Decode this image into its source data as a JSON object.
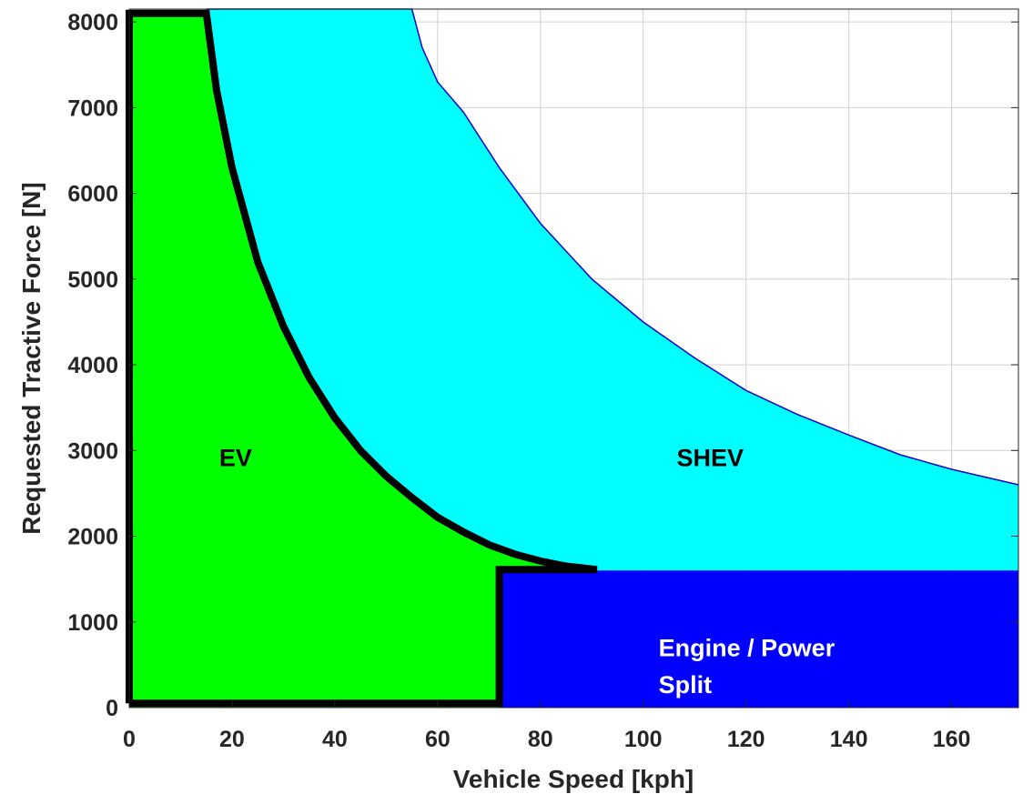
{
  "chart_data": {
    "type": "area",
    "xlabel": "Vehicle Speed [kph]",
    "ylabel": "Requested Tractive Force [N]",
    "xlim": [
      0,
      173
    ],
    "ylim": [
      0,
      8150
    ],
    "x_ticks": [
      0,
      20,
      40,
      60,
      80,
      100,
      120,
      140,
      160
    ],
    "y_ticks": [
      0,
      1000,
      2000,
      3000,
      4000,
      5000,
      6000,
      7000,
      8000
    ],
    "grid": true,
    "regions": [
      {
        "name": "SHEV",
        "color": "#00ffff",
        "edge_color": "#0000cc",
        "upper_boundary": [
          [
            15,
            8150
          ],
          [
            55,
            8150
          ],
          [
            57,
            7700
          ],
          [
            60,
            7300
          ],
          [
            65,
            6950
          ],
          [
            72,
            6300
          ],
          [
            80,
            5650
          ],
          [
            90,
            5000
          ],
          [
            100,
            4500
          ],
          [
            110,
            4080
          ],
          [
            120,
            3700
          ],
          [
            130,
            3420
          ],
          [
            140,
            3180
          ],
          [
            150,
            2950
          ],
          [
            160,
            2780
          ],
          [
            173,
            2600
          ]
        ],
        "lower_y": 1600
      },
      {
        "name": "EV",
        "color": "#00ff00",
        "polygon": [
          [
            0,
            0
          ],
          [
            0,
            8100
          ],
          [
            15,
            8100
          ],
          [
            17,
            7200
          ],
          [
            20,
            6300
          ],
          [
            25,
            5200
          ],
          [
            30,
            4450
          ],
          [
            35,
            3850
          ],
          [
            40,
            3380
          ],
          [
            45,
            3000
          ],
          [
            50,
            2700
          ],
          [
            55,
            2450
          ],
          [
            60,
            2220
          ],
          [
            65,
            2050
          ],
          [
            70,
            1900
          ],
          [
            75,
            1790
          ],
          [
            80,
            1710
          ],
          [
            85,
            1650
          ],
          [
            91,
            1610
          ],
          [
            72,
            1610
          ],
          [
            72,
            0
          ]
        ]
      },
      {
        "name": "Engine / Power Split",
        "color": "#0000ff",
        "polygon": [
          [
            72,
            0
          ],
          [
            72,
            1600
          ],
          [
            173,
            1600
          ],
          [
            173,
            0
          ]
        ]
      }
    ],
    "boundary_line": {
      "color": "#000000",
      "points": [
        [
          0,
          50
        ],
        [
          0,
          8100
        ],
        [
          15,
          8100
        ],
        [
          17,
          7200
        ],
        [
          20,
          6300
        ],
        [
          25,
          5200
        ],
        [
          30,
          4450
        ],
        [
          35,
          3850
        ],
        [
          40,
          3380
        ],
        [
          45,
          3000
        ],
        [
          50,
          2700
        ],
        [
          55,
          2450
        ],
        [
          60,
          2220
        ],
        [
          65,
          2050
        ],
        [
          70,
          1900
        ],
        [
          75,
          1790
        ],
        [
          80,
          1710
        ],
        [
          85,
          1650
        ],
        [
          91,
          1610
        ],
        [
          72,
          1610
        ],
        [
          72,
          50
        ],
        [
          0,
          50
        ]
      ]
    },
    "annotations": [
      {
        "text": "EV",
        "x": 17.5,
        "y": 2820,
        "color": "#000000"
      },
      {
        "text": "SHEV",
        "x": 106.5,
        "y": 2820,
        "color": "#000000"
      },
      {
        "text": "Engine / Power",
        "x": 103,
        "y": 600,
        "color": "#ffffff"
      },
      {
        "text": "Split",
        "x": 103,
        "y": 170,
        "color": "#ffffff"
      }
    ]
  }
}
